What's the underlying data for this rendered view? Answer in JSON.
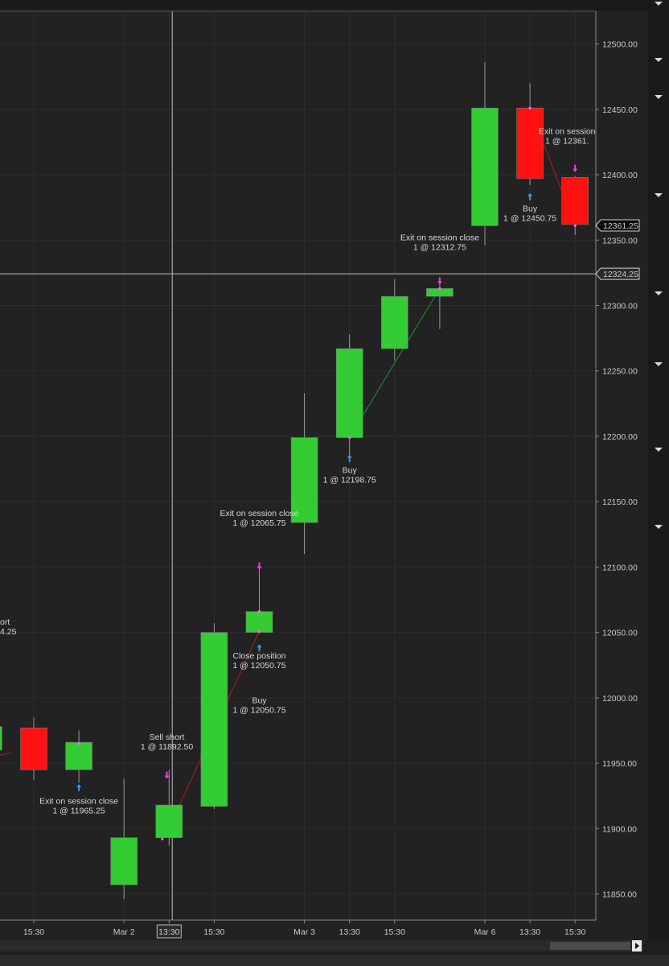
{
  "chart_data": {
    "type": "candlestick",
    "y_range": [
      11830,
      12525
    ],
    "y_ticks": [
      "12500.00",
      "12450.00",
      "12400.00",
      "12350.00",
      "12300.00",
      "12250.00",
      "12200.00",
      "12150.00",
      "12100.00",
      "12050.00",
      "12000.00",
      "11950.00",
      "11900.00",
      "11850.00"
    ],
    "x_ticks": [
      "15:30",
      "Mar 2",
      "13:30",
      "15:30",
      "Mar 3",
      "13:30",
      "15:30",
      "Mar 6",
      "13:30",
      "15:30"
    ],
    "highlighted_x_tick": "13:30",
    "crosshair_price": "12324.25",
    "last_price": "12361.25",
    "colors": {
      "up": "#33cc33",
      "down": "#ff1111",
      "background": "#222222",
      "grid": "#2e2e2e",
      "entry_arrow": "#3399ff",
      "exit_arrow": "#ff33ff",
      "long_line": "#2a8f2a",
      "short_line": "#b02020"
    },
    "candles": [
      {
        "slot": -1,
        "open": 11960,
        "high": 11980,
        "low": 11950,
        "close": 11978
      },
      {
        "slot": 0,
        "open": 11977,
        "high": 11985,
        "low": 11937,
        "close": 11945
      },
      {
        "slot": 1,
        "open": 11945,
        "high": 11975,
        "low": 11935,
        "close": 11966
      },
      {
        "slot": 2,
        "open": 11857,
        "high": 11938,
        "low": 11846,
        "close": 11893
      },
      {
        "slot": 3,
        "open": 11893,
        "high": 11945,
        "low": 11887,
        "close": 11918
      },
      {
        "slot": 4,
        "open": 11917,
        "high": 12057,
        "low": 11915,
        "close": 12050
      },
      {
        "slot": 5,
        "open": 12050,
        "high": 12100,
        "low": 12049,
        "close": 12066
      },
      {
        "slot": 6,
        "open": 12134,
        "high": 12233,
        "low": 12110,
        "close": 12199
      },
      {
        "slot": 7,
        "open": 12199,
        "high": 12278,
        "low": 12185,
        "close": 12267
      },
      {
        "slot": 8,
        "open": 12267,
        "high": 12320,
        "low": 12258,
        "close": 12307
      },
      {
        "slot": 9,
        "open": 12307,
        "high": 12318,
        "low": 12282,
        "close": 12313
      },
      {
        "slot": 10,
        "open": 12361,
        "high": 12486,
        "low": 12346,
        "close": 12451
      },
      {
        "slot": 11,
        "open": 12451,
        "high": 12470,
        "low": 12392,
        "close": 12397
      },
      {
        "slot": 12,
        "open": 12398,
        "high": 12399,
        "low": 12354,
        "close": 12362
      }
    ],
    "trades": [
      {
        "kind": "entry",
        "slot": 2.9,
        "price": 11893,
        "label": [
          "Sell short",
          "1 @ 11892.50"
        ],
        "line_to_slot": 5,
        "line_to_price": 12051,
        "dir": "short"
      },
      {
        "kind": "exit",
        "slot": 5,
        "price": 12051,
        "label": [
          "Close position",
          "1 @ 12050.75"
        ]
      },
      {
        "kind": "entry",
        "slot": 5,
        "price": 12051,
        "label": [
          "Buy",
          "1 @ 12050.75"
        ],
        "line_to_slot": 5,
        "line_to_price": 12066,
        "dir": "long"
      },
      {
        "kind": "exit",
        "slot": 5,
        "price": 12066,
        "label": [
          "Exit on session close",
          "1 @ 12065.75"
        ]
      },
      {
        "kind": "entry",
        "slot": 7,
        "price": 12199,
        "label": [
          "Buy",
          "1 @ 12198.75"
        ],
        "line_to_slot": 9,
        "line_to_price": 12313,
        "dir": "long"
      },
      {
        "kind": "exit",
        "slot": 9,
        "price": 12313,
        "label": [
          "Exit on session close",
          "1 @ 12312.75"
        ]
      },
      {
        "kind": "entry",
        "slot": 11,
        "price": 12451,
        "label": [
          "Buy",
          "1 @ 12450.75"
        ],
        "line_to_slot": 12,
        "line_to_price": 12361,
        "dir": "short"
      },
      {
        "kind": "exit",
        "slot": 12,
        "price": 12361,
        "label": [
          "Exit on session",
          "1 @ 12361."
        ]
      },
      {
        "kind": "exit",
        "slot": 1,
        "price": 11965,
        "label": [
          "Exit on session close",
          "1 @ 11965.25"
        ]
      },
      {
        "kind": "partial",
        "slot": -1,
        "price": 12060,
        "label": [
          "ort",
          "4.25"
        ]
      }
    ]
  },
  "panel": {
    "collapse_icons": [
      "chevron-down-icon",
      "chevron-down-icon",
      "chevron-down-icon",
      "chevron-down-icon",
      "chevron-down-icon",
      "chevron-down-icon",
      "chevron-down-icon",
      "chevron-down-icon",
      "chevron-down-icon",
      "chevron-down-icon"
    ]
  }
}
